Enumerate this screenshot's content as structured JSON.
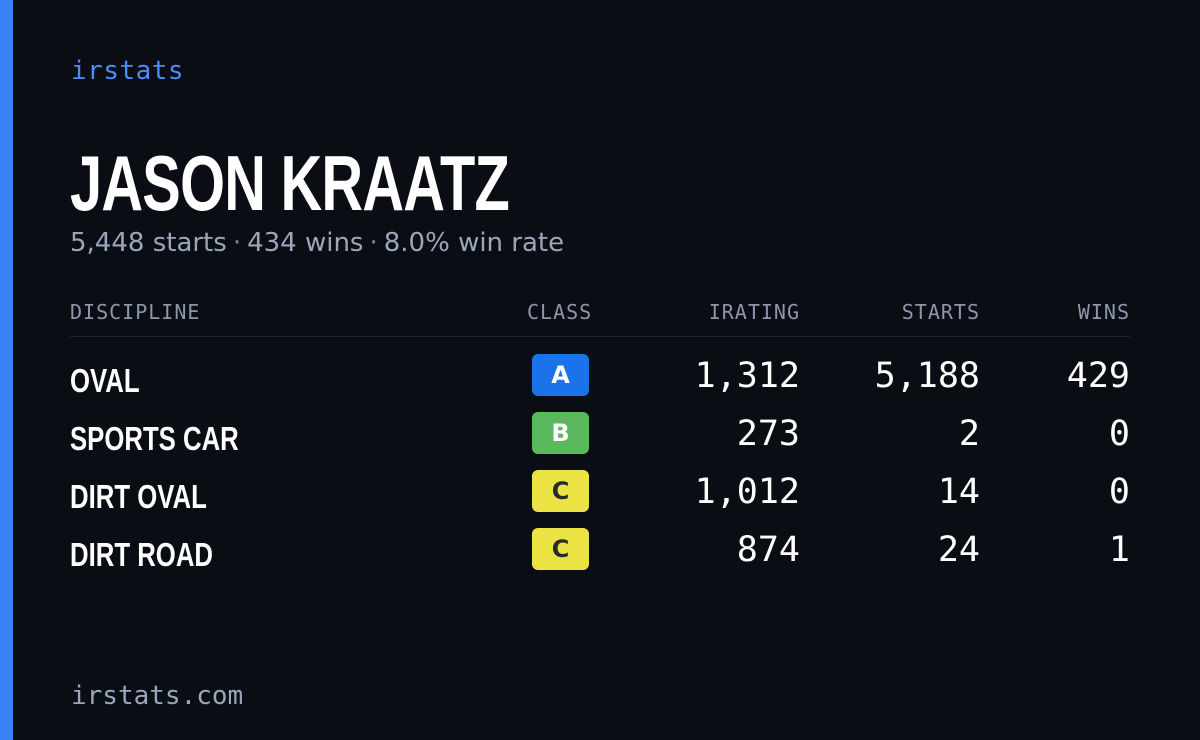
{
  "brand": "irstats",
  "player": {
    "name": "JASON KRAATZ",
    "starts": "5,448 starts",
    "wins": "434 wins",
    "win_rate": "8.0% win rate",
    "separator": "·"
  },
  "table": {
    "headers": {
      "discipline": "DISCIPLINE",
      "class": "CLASS",
      "irating": "IRATING",
      "starts": "STARTS",
      "wins": "WINS"
    },
    "rows": [
      {
        "discipline": "OVAL",
        "class": "A",
        "class_color": "#1a73e8",
        "class_text_color": "#ffffff",
        "irating": "1,312",
        "starts": "5,188",
        "wins": "429"
      },
      {
        "discipline": "SPORTS CAR",
        "class": "B",
        "class_color": "#5cb85c",
        "class_text_color": "#ffffff",
        "irating": "273",
        "starts": "2",
        "wins": "0"
      },
      {
        "discipline": "DIRT OVAL",
        "class": "C",
        "class_color": "#ece445",
        "class_text_color": "#2a2a2a",
        "irating": "1,012",
        "starts": "14",
        "wins": "0"
      },
      {
        "discipline": "DIRT ROAD",
        "class": "C",
        "class_color": "#ece445",
        "class_text_color": "#2a2a2a",
        "irating": "874",
        "starts": "24",
        "wins": "1"
      }
    ]
  },
  "footer": "irstats.com",
  "colors": {
    "background": "#0a0d14",
    "accent": "#3b82f6",
    "brand": "#4b8df8",
    "muted": "#9aa6ba"
  }
}
